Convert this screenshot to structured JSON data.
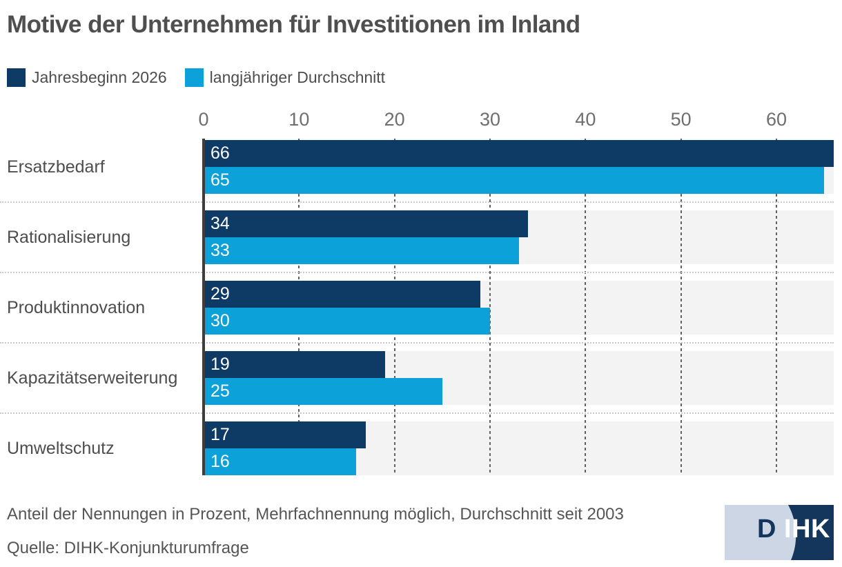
{
  "chart_data": {
    "type": "bar",
    "orientation": "horizontal",
    "title": "Motive der Unternehmen für Investitionen im Inland",
    "categories": [
      "Ersatzbedarf",
      "Rationalisierung",
      "Produktinnovation",
      "Kapazitätserweiterung",
      "Umweltschutz"
    ],
    "series": [
      {
        "name": "Jahresbeginn 2026",
        "color": "#0e3a66",
        "values": [
          66,
          34,
          29,
          19,
          17
        ]
      },
      {
        "name": "langjähriger Durchschnitt",
        "color": "#0da1d9",
        "values": [
          65,
          33,
          30,
          25,
          16
        ]
      }
    ],
    "x_ticks": [
      0,
      10,
      20,
      30,
      40,
      50,
      60
    ],
    "xlim": [
      0,
      66
    ],
    "grid": "vertical-dashed",
    "legend_position": "top-left",
    "value_labels": "inside-start",
    "colors": {
      "row_band": "#f3f3f3",
      "axis_line": "#3d3d3d",
      "gridline": "#5f5f5f",
      "separator": "#c9c9c9",
      "title_text": "#4f4f4f",
      "tick_text": "#6e6e6e"
    }
  },
  "footer": {
    "note": "Anteil der Nennungen in Prozent, Mehrfachnennung möglich, Durchschnitt seit 2003",
    "source": "Quelle: DIHK-Konjunkturumfrage"
  },
  "logo": {
    "letter_dark": "D",
    "letters_light": "IHK",
    "color_light": "#ccd6e4",
    "color_navy": "#14365c"
  }
}
